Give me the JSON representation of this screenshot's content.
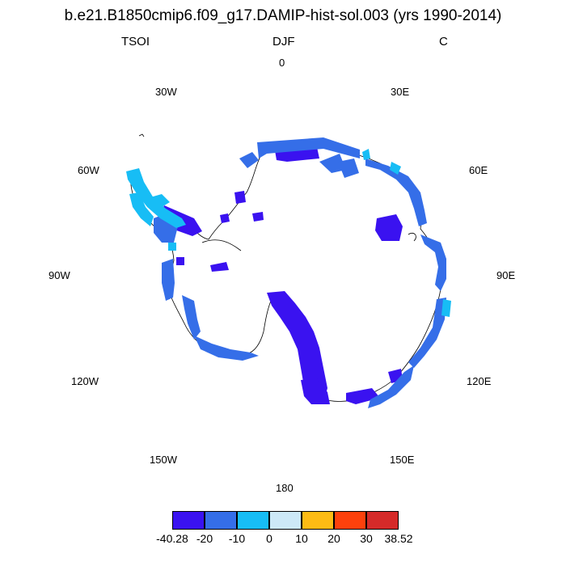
{
  "title": "b.e21.B1850cmip6.f09_g17.DAMIP-hist-sol.003 (yrs 1990-2014)",
  "left_string": "TSOI",
  "center_string": "DJF",
  "right_string": "C",
  "longitude_labels": {
    "lon0": "0",
    "lon30e": "30E",
    "lon60e": "60E",
    "lon90e": "90E",
    "lon120e": "120E",
    "lon150e": "150E",
    "lon180": "180",
    "lon150w": "150W",
    "lon120w": "120W",
    "lon90w": "90W",
    "lon60w": "60W",
    "lon30w": "30W"
  },
  "colorbar": {
    "colors": [
      "#3a12f0",
      "#356ee8",
      "#17bdf5",
      "#cde9f7",
      "#fdbb14",
      "#fd410c",
      "#d52a29"
    ],
    "labels": [
      "-40.28",
      "-20",
      "-10",
      "0",
      "10",
      "20",
      "30",
      "38.52"
    ]
  },
  "colors": {
    "strong_negative": "#3a12f0",
    "moderate_negative": "#356ee8",
    "weak_negative": "#17bdf5"
  }
}
